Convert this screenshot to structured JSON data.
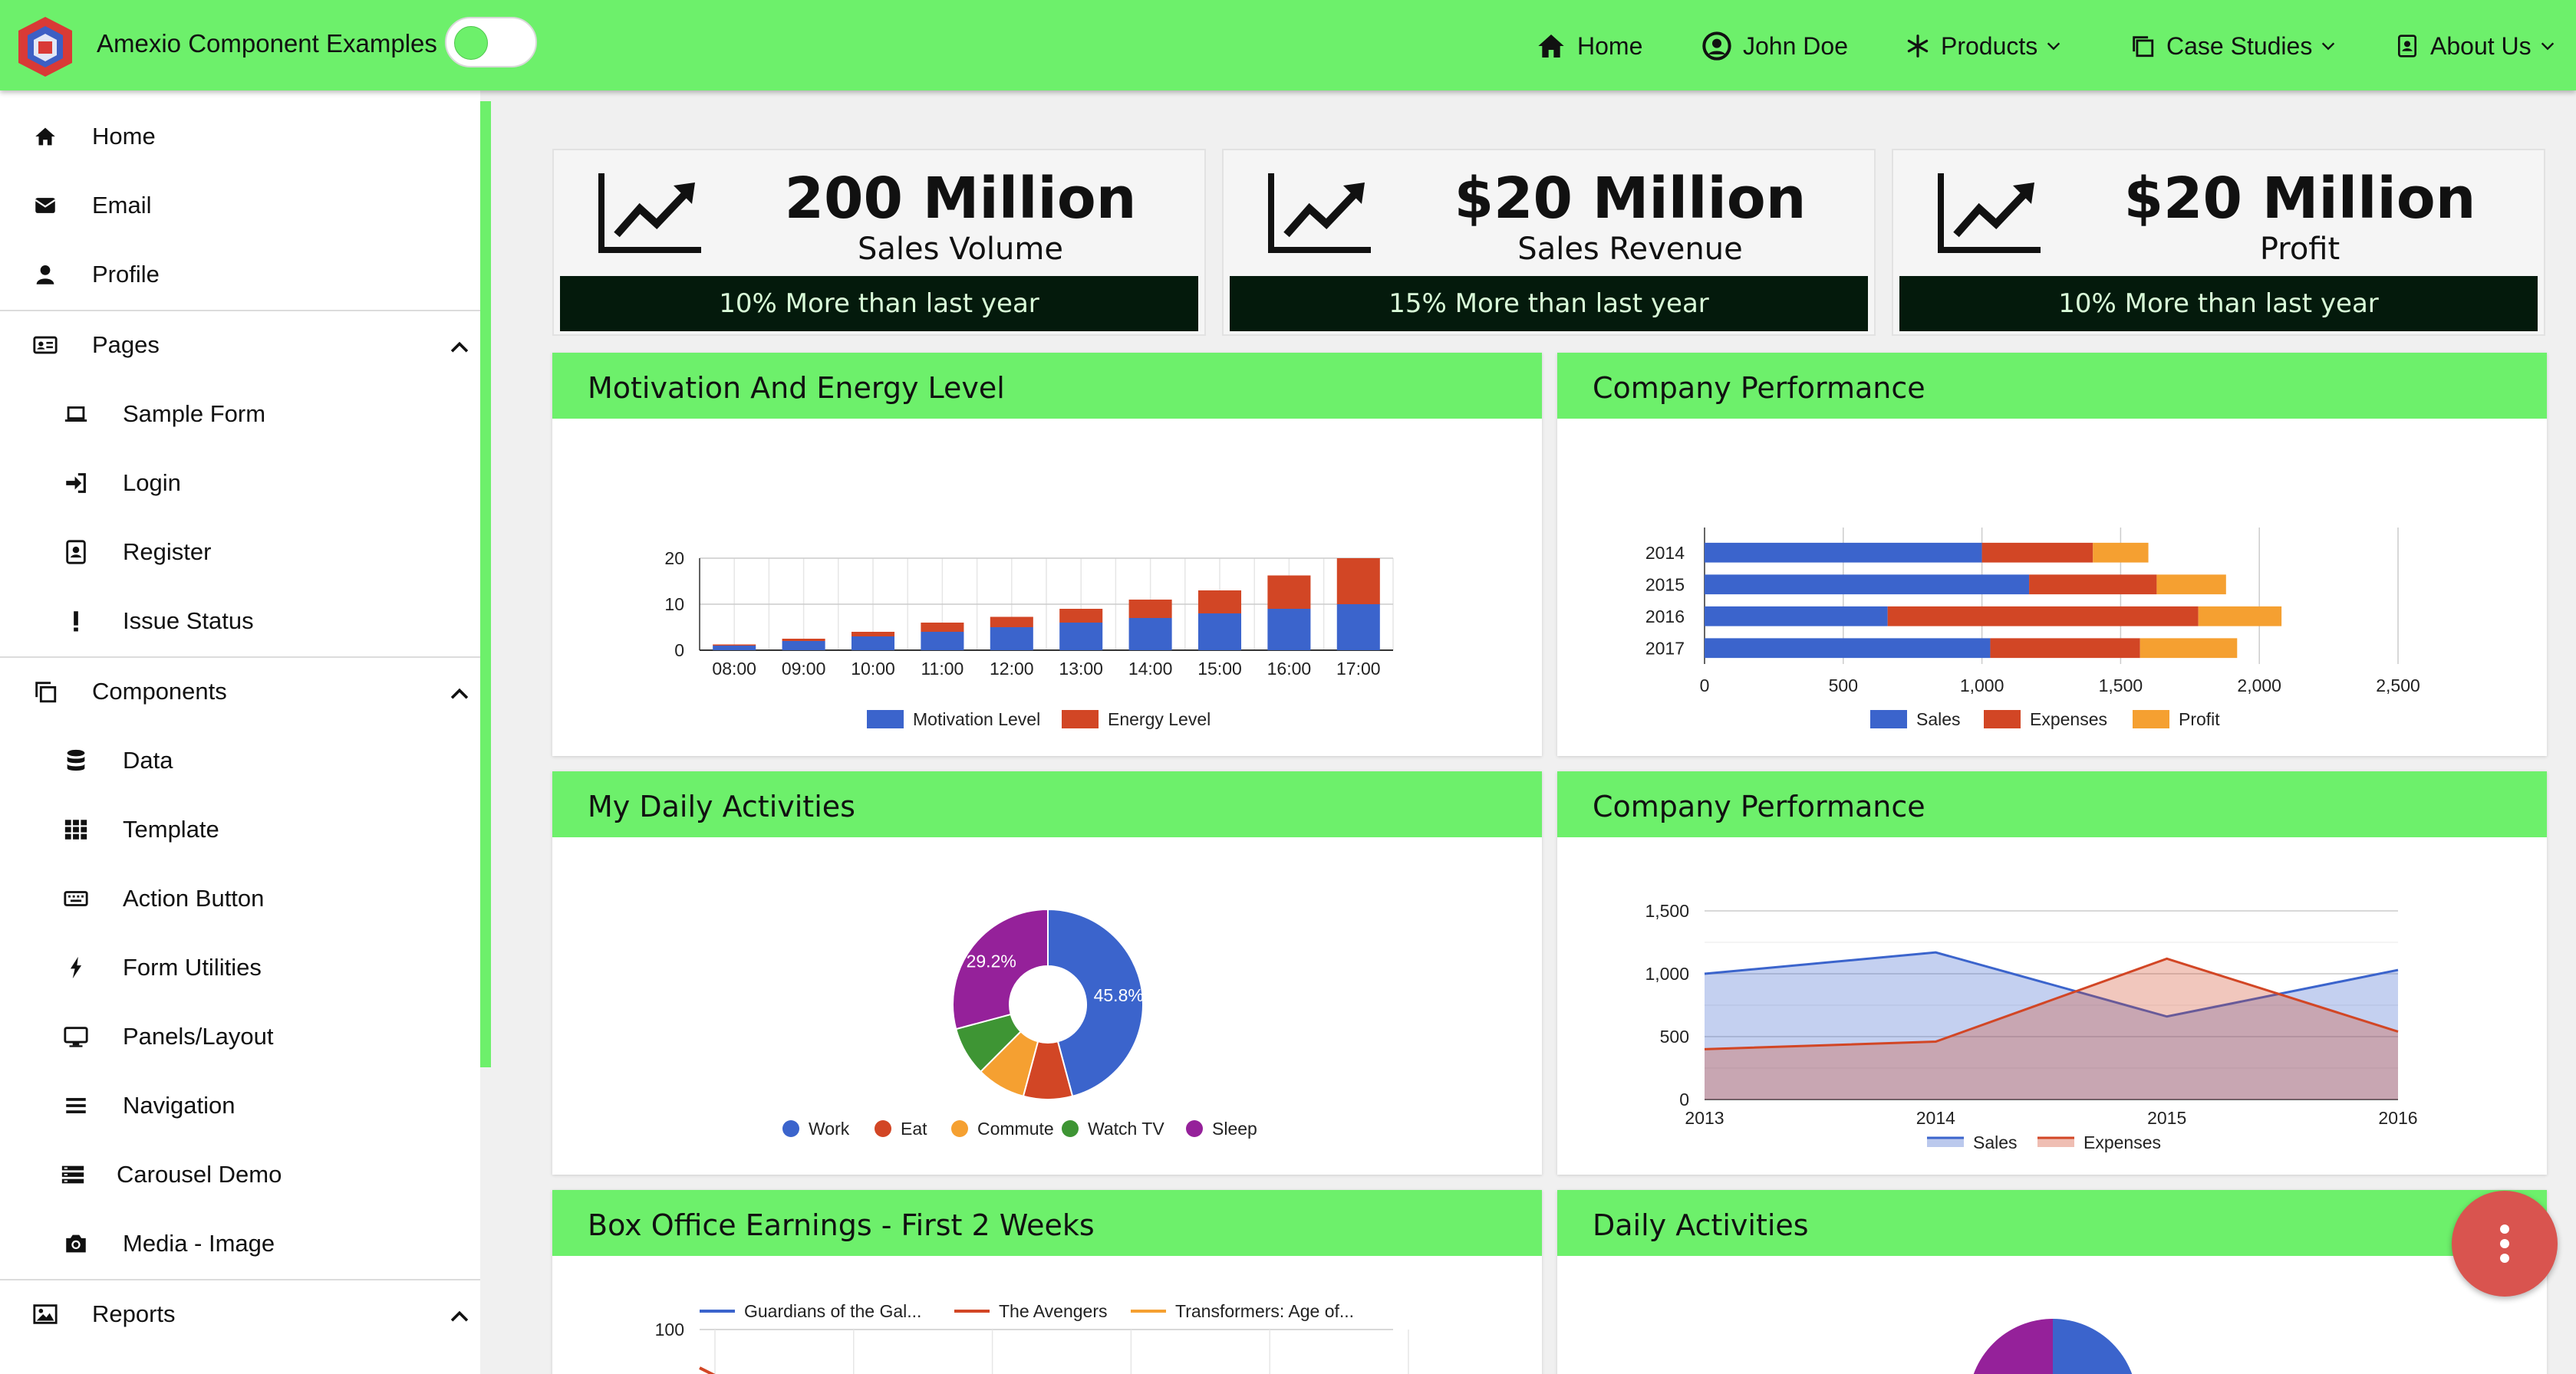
{
  "app": {
    "title": "Amexio Component Examples"
  },
  "nav": {
    "home": "Home",
    "user": "John Doe",
    "products": "Products",
    "case_studies": "Case Studies",
    "about": "About Us"
  },
  "sidebar": {
    "items": [
      {
        "label": "Home",
        "icon": "home-icon"
      },
      {
        "label": "Email",
        "icon": "envelope-icon"
      },
      {
        "label": "Profile",
        "icon": "user-icon"
      },
      {
        "label": "Pages",
        "icon": "id-card-icon",
        "group": true,
        "expanded": true
      },
      {
        "label": "Sample Form",
        "icon": "laptop-icon"
      },
      {
        "label": "Login",
        "icon": "sign-in-icon"
      },
      {
        "label": "Register",
        "icon": "address-book-icon"
      },
      {
        "label": "Issue Status",
        "icon": "exclamation-icon"
      },
      {
        "label": "Components",
        "icon": "copy-icon",
        "group": true,
        "expanded": true
      },
      {
        "label": "Data",
        "icon": "database-icon"
      },
      {
        "label": "Template",
        "icon": "grid-icon"
      },
      {
        "label": "Action Button",
        "icon": "keyboard-icon"
      },
      {
        "label": "Form Utilities",
        "icon": "bolt-icon"
      },
      {
        "label": "Panels/Layout",
        "icon": "desktop-icon"
      },
      {
        "label": "Navigation",
        "icon": "bars-icon"
      },
      {
        "label": "Carousel Demo",
        "icon": "carousel-icon"
      },
      {
        "label": "Media - Image",
        "icon": "camera-icon"
      },
      {
        "label": "Reports",
        "icon": "image-icon",
        "group": true,
        "expanded": true
      }
    ]
  },
  "stats": [
    {
      "value": "200 Million",
      "label": "Sales Volume",
      "footer": "10% More than last year"
    },
    {
      "value": "$20 Million",
      "label": "Sales Revenue",
      "footer": "15% More than last year"
    },
    {
      "value": "$20 Million",
      "label": "Profit",
      "footer": "10% More than last year"
    }
  ],
  "panels": [
    {
      "title": "Motivation And Energy Level"
    },
    {
      "title": "Company Performance"
    },
    {
      "title": "My Daily Activities"
    },
    {
      "title": "Company Performance"
    },
    {
      "title": "Box Office Earnings - First 2 Weeks"
    },
    {
      "title": "Daily Activities"
    }
  ],
  "colors": {
    "accent": "#6df06b",
    "blue": "#3b64cc",
    "red": "#d24625",
    "orange": "#f5a031",
    "green": "#3e9534",
    "purple": "#95219a",
    "fab": "#d9544f"
  },
  "chart_data": [
    {
      "type": "bar",
      "stacked": true,
      "categories": [
        "08:00",
        "09:00",
        "10:00",
        "11:00",
        "12:00",
        "13:00",
        "14:00",
        "15:00",
        "16:00",
        "17:00"
      ],
      "series": [
        {
          "name": "Motivation Level",
          "values": [
            1,
            2,
            3,
            4,
            5,
            6,
            7,
            8,
            9,
            10
          ]
        },
        {
          "name": "Energy Level",
          "values": [
            0.25,
            0.5,
            1,
            2,
            2.25,
            3,
            4,
            5,
            7.25,
            10
          ]
        }
      ],
      "ylim": [
        0,
        20
      ],
      "yticks": [
        0,
        10,
        20
      ],
      "grid": true,
      "legend": "bottom"
    },
    {
      "type": "bar",
      "orientation": "horizontal",
      "stacked": true,
      "categories": [
        "2014",
        "2015",
        "2016",
        "2017"
      ],
      "series": [
        {
          "name": "Sales",
          "values": [
            1000,
            1170,
            660,
            1030
          ]
        },
        {
          "name": "Expenses",
          "values": [
            400,
            460,
            1120,
            540
          ]
        },
        {
          "name": "Profit",
          "values": [
            200,
            250,
            300,
            350
          ]
        }
      ],
      "xlim": [
        0,
        2500
      ],
      "xticks": [
        "0",
        "500",
        "1,000",
        "1,500",
        "2,000",
        "2,500"
      ],
      "grid": true,
      "legend": "bottom"
    },
    {
      "type": "pie",
      "donut": true,
      "categories": [
        "Work",
        "Eat",
        "Commute",
        "Watch TV",
        "Sleep"
      ],
      "values": [
        11,
        2,
        2,
        2,
        7
      ],
      "labels": [
        "45.8%",
        "",
        "",
        "",
        "29.2%"
      ],
      "legend": "bottom"
    },
    {
      "type": "area",
      "x": [
        "2013",
        "2014",
        "2015",
        "2016"
      ],
      "series": [
        {
          "name": "Sales",
          "values": [
            1000,
            1170,
            660,
            1030
          ]
        },
        {
          "name": "Expenses",
          "values": [
            400,
            460,
            1120,
            540
          ]
        }
      ],
      "ylim": [
        0,
        1500
      ],
      "yticks": [
        "0",
        "500",
        "1,000",
        "1,500"
      ],
      "grid": true,
      "legend": "bottom"
    },
    {
      "type": "line",
      "series": [
        {
          "name": "Guardians of the Gal..."
        },
        {
          "name": "The Avengers"
        },
        {
          "name": "Transformers: Age of..."
        }
      ],
      "yticks": [
        "100"
      ],
      "legend": "top"
    },
    {
      "type": "pie",
      "partial": true
    }
  ]
}
